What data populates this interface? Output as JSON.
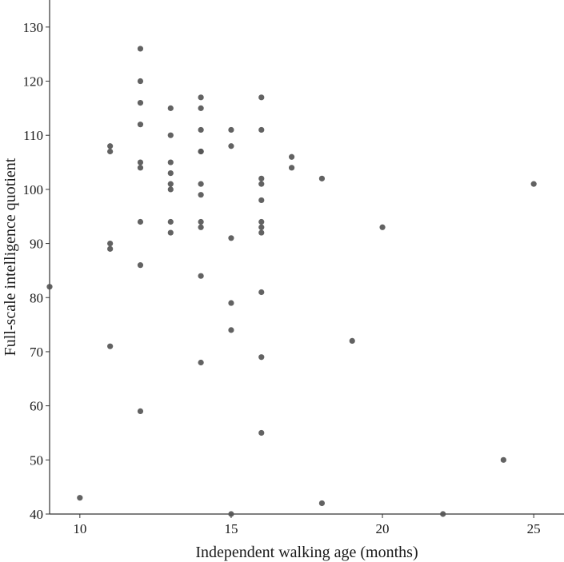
{
  "chart_data": {
    "type": "scatter",
    "title": "",
    "xlabel": "Independent walking age (months)",
    "ylabel": "Full-scale intelligence quotient",
    "xlim": [
      9,
      26
    ],
    "ylim": [
      40,
      135
    ],
    "x_ticks": [
      10,
      15,
      20,
      25
    ],
    "y_ticks": [
      40,
      50,
      60,
      70,
      80,
      90,
      100,
      110,
      120,
      130
    ],
    "grid": false,
    "marker_color": "#555555",
    "points": [
      [
        9,
        82
      ],
      [
        10,
        43
      ],
      [
        11,
        108
      ],
      [
        11,
        107
      ],
      [
        11,
        90
      ],
      [
        11,
        89
      ],
      [
        11,
        71
      ],
      [
        12,
        126
      ],
      [
        12,
        120
      ],
      [
        12,
        116
      ],
      [
        12,
        112
      ],
      [
        12,
        105
      ],
      [
        12,
        104
      ],
      [
        12,
        94
      ],
      [
        12,
        86
      ],
      [
        12,
        59
      ],
      [
        13,
        115
      ],
      [
        13,
        110
      ],
      [
        13,
        105
      ],
      [
        13,
        103
      ],
      [
        13,
        101
      ],
      [
        13,
        100
      ],
      [
        13,
        94
      ],
      [
        13,
        92
      ],
      [
        14,
        117
      ],
      [
        14,
        115
      ],
      [
        14,
        111
      ],
      [
        14,
        107
      ],
      [
        14,
        107
      ],
      [
        14,
        101
      ],
      [
        14,
        99
      ],
      [
        14,
        94
      ],
      [
        14,
        93
      ],
      [
        14,
        84
      ],
      [
        14,
        68
      ],
      [
        15,
        111
      ],
      [
        15,
        108
      ],
      [
        15,
        91
      ],
      [
        15,
        79
      ],
      [
        15,
        74
      ],
      [
        15,
        40
      ],
      [
        16,
        117
      ],
      [
        16,
        111
      ],
      [
        16,
        102
      ],
      [
        16,
        101
      ],
      [
        16,
        98
      ],
      [
        16,
        94
      ],
      [
        16,
        93
      ],
      [
        16,
        92
      ],
      [
        16,
        81
      ],
      [
        16,
        69
      ],
      [
        16,
        55
      ],
      [
        17,
        106
      ],
      [
        17,
        104
      ],
      [
        18,
        102
      ],
      [
        18,
        42
      ],
      [
        19,
        72
      ],
      [
        20,
        93
      ],
      [
        22,
        40
      ],
      [
        24,
        50
      ],
      [
        25,
        101
      ]
    ]
  }
}
